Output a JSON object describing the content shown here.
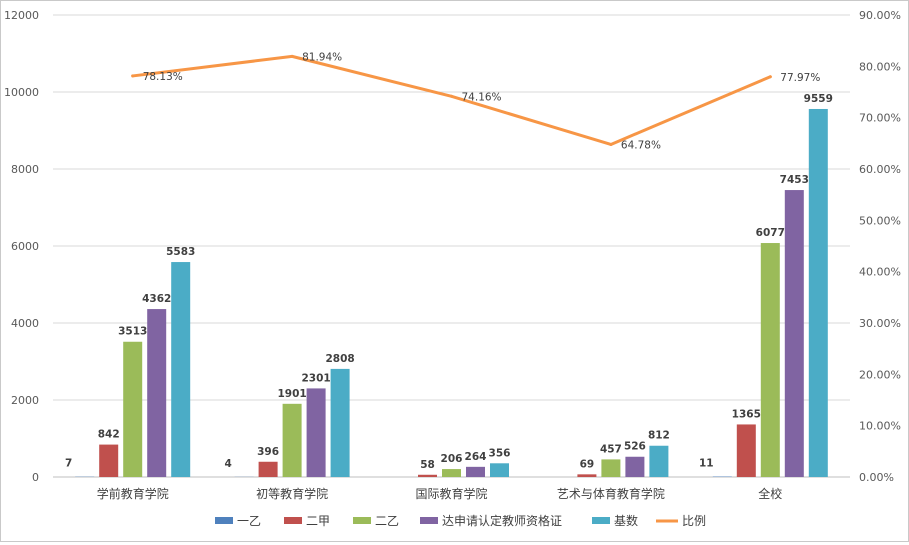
{
  "chart_data": {
    "type": "bar",
    "title": "",
    "categories": [
      "学前教育学院",
      "初等教育学院",
      "国际教育学院",
      "艺术与体育教育学院",
      "全校"
    ],
    "series": [
      {
        "name": "一乙",
        "color": "#4f81bd",
        "values": [
          7,
          4,
          0,
          0,
          11
        ],
        "labels": [
          "7",
          "4",
          "",
          "",
          "11"
        ]
      },
      {
        "name": "二甲",
        "color": "#c0504d",
        "values": [
          842,
          396,
          58,
          69,
          1365
        ],
        "labels": [
          "842",
          "396",
          "58",
          "69",
          "1365"
        ]
      },
      {
        "name": "二乙",
        "color": "#9bbb59",
        "values": [
          3513,
          1901,
          206,
          457,
          6077
        ],
        "labels": [
          "3513",
          "1901",
          "206",
          "457",
          "6077"
        ]
      },
      {
        "name": "达申请认定教师资格证",
        "color": "#8064a2",
        "values": [
          4362,
          2301,
          264,
          526,
          7453
        ],
        "labels": [
          "4362",
          "2301",
          "264",
          "526",
          "7453"
        ]
      },
      {
        "name": "基数",
        "color": "#4bacc6",
        "values": [
          5583,
          2808,
          356,
          812,
          9559
        ],
        "labels": [
          "5583",
          "2808",
          "356",
          "812",
          "9559"
        ]
      }
    ],
    "line_series": {
      "name": "比例",
      "color": "#f79646",
      "values": [
        78.13,
        81.94,
        74.16,
        64.78,
        77.97
      ],
      "labels": [
        "78.13%",
        "81.94%",
        "74.16%",
        "64.78%",
        "77.97%"
      ]
    },
    "y_left": {
      "min": 0,
      "max": 12000,
      "step": 2000,
      "ticks": [
        "0",
        "2000",
        "4000",
        "6000",
        "8000",
        "10000",
        "12000"
      ]
    },
    "y_right": {
      "min": 0,
      "max": 90,
      "step": 10,
      "ticks": [
        "0.00%",
        "10.00%",
        "20.00%",
        "30.00%",
        "40.00%",
        "50.00%",
        "60.00%",
        "70.00%",
        "80.00%",
        "90.00%"
      ]
    },
    "grid": true,
    "legend_position": "bottom"
  }
}
